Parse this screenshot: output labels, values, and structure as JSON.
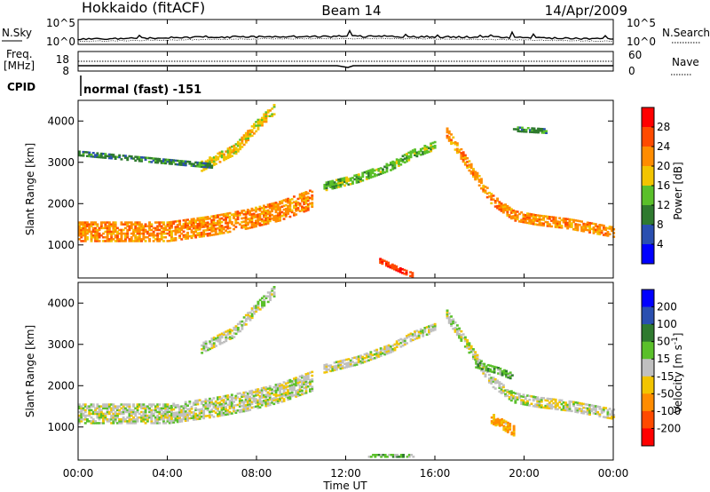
{
  "header": {
    "station": "Hokkaido (fitACF)",
    "beam": "Beam 14",
    "date": "14/Apr/2009"
  },
  "noise_panel": {
    "left_label": "N.Sky",
    "right_label": "N.Search",
    "left_ticks": [
      "10^5",
      "10^0"
    ],
    "right_ticks": [
      "10^5",
      "10^0"
    ]
  },
  "freq_panel": {
    "left_label_1": "Freq.",
    "left_label_2": "[MHz]",
    "left_ticks": [
      "18",
      "8"
    ],
    "right_label": "Nave",
    "right_ticks": [
      "60",
      "0"
    ]
  },
  "cpid": {
    "label": "CPID",
    "text": "normal (fast) -151"
  },
  "x_axis": {
    "label": "Time UT",
    "ticks": [
      "00:00",
      "04:00",
      "08:00",
      "12:00",
      "16:00",
      "20:00",
      "00:00"
    ]
  },
  "colors": {
    "power": [
      "#0000ff",
      "#2a4fb0",
      "#2f7a2f",
      "#5ac02a",
      "#f2c400",
      "#ff8c00",
      "#ff4a00",
      "#ff0000"
    ],
    "velocity": [
      "#0000ff",
      "#2a4fb0",
      "#2f7a2f",
      "#5ac02a",
      "#c0c0c0",
      "#f2c400",
      "#ff8c00",
      "#ff4a00",
      "#ff0000"
    ]
  },
  "chart_data": [
    {
      "type": "heatmap",
      "title": "",
      "xlabel": "Time UT",
      "ylabel": "Slant Range [km]",
      "xlim": [
        0,
        24
      ],
      "ylim": [
        200,
        4500
      ],
      "y_ticks": [
        "1000",
        "2000",
        "3000",
        "4000"
      ],
      "colorbar": {
        "label": "Power [dB]",
        "levels": [
          "4",
          "8",
          "12",
          "16",
          "20",
          "24",
          "28"
        ],
        "range": [
          0,
          32
        ]
      },
      "features": [
        {
          "t": [
            0,
            2,
            4,
            6,
            7.5,
            9,
            10.5
          ],
          "r": [
            1300,
            1300,
            1300,
            1450,
            1600,
            1800,
            2100
          ],
          "w": 450,
          "v": 22
        },
        {
          "t": [
            5.5,
            7,
            8,
            8.8
          ],
          "r": [
            2900,
            3300,
            3900,
            4300
          ],
          "w": 250,
          "v": 18
        },
        {
          "t": [
            11,
            12.5,
            14,
            15,
            16
          ],
          "r": [
            2400,
            2600,
            2900,
            3200,
            3400
          ],
          "w": 200,
          "v": 14
        },
        {
          "t": [
            16.5,
            17.5,
            18.5,
            19.5,
            20.5,
            22,
            24
          ],
          "r": [
            3700,
            2900,
            2100,
            1700,
            1600,
            1500,
            1300
          ],
          "w": 250,
          "v": 22
        },
        {
          "t": [
            19.5,
            21
          ],
          "r": [
            3800,
            3750
          ],
          "w": 120,
          "v": 10
        },
        {
          "t": [
            0,
            3,
            6
          ],
          "r": [
            3200,
            3050,
            2900
          ],
          "w": 100,
          "v": 10
        },
        {
          "t": [
            13.5,
            14.5,
            15
          ],
          "r": [
            600,
            350,
            250
          ],
          "w": 100,
          "v": 28
        }
      ]
    },
    {
      "type": "heatmap",
      "title": "",
      "xlabel": "Time UT",
      "ylabel": "Slant Range [km]",
      "xlim": [
        0,
        24
      ],
      "ylim": [
        200,
        4500
      ],
      "y_ticks": [
        "1000",
        "2000",
        "3000",
        "4000"
      ],
      "colorbar": {
        "label": "Velocity [m s^-1]",
        "levels": [
          "200",
          "100",
          "50",
          "15",
          "-15",
          "-50",
          "-100",
          "-200"
        ],
        "range": [
          -250,
          250
        ]
      },
      "features": [
        {
          "t": [
            0,
            2,
            4,
            6,
            7.5,
            9,
            10.5
          ],
          "r": [
            1300,
            1300,
            1300,
            1450,
            1600,
            1800,
            2100
          ],
          "w": 450,
          "v": 0
        },
        {
          "t": [
            5.5,
            7,
            8,
            8.8
          ],
          "r": [
            2900,
            3300,
            3900,
            4300
          ],
          "w": 250,
          "v": 5
        },
        {
          "t": [
            11,
            12.5,
            14,
            15,
            16
          ],
          "r": [
            2400,
            2600,
            2900,
            3200,
            3400
          ],
          "w": 200,
          "v": -5
        },
        {
          "t": [
            16.5,
            17.5,
            18.5,
            19.5,
            20.5,
            22,
            24
          ],
          "r": [
            3700,
            2900,
            2100,
            1700,
            1600,
            1500,
            1300
          ],
          "w": 250,
          "v": 0
        },
        {
          "t": [
            17.8,
            18.8,
            19.5
          ],
          "r": [
            2500,
            2350,
            2200
          ],
          "w": 150,
          "v": 60
        },
        {
          "t": [
            18.5,
            19.5
          ],
          "r": [
            1200,
            900
          ],
          "w": 250,
          "v": -80
        },
        {
          "t": [
            13,
            15
          ],
          "r": [
            300,
            300
          ],
          "w": 80,
          "v": 60
        }
      ]
    }
  ]
}
